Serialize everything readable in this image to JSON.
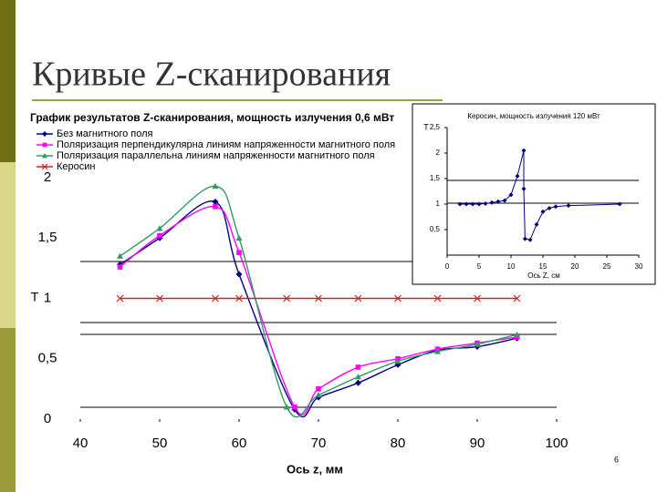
{
  "slide_title": "Кривые Z-сканирования",
  "page_number": "6",
  "chart_data": [
    {
      "type": "line",
      "title": "График результатов Z-сканирования, мощность излучения 0,6 мВт",
      "x_label": "Ось z, мм",
      "y_label": "T",
      "xlim": [
        40,
        100
      ],
      "xticks": [
        40,
        50,
        60,
        70,
        80,
        90,
        100
      ],
      "ylim": [
        0,
        2
      ],
      "yticks": [
        0,
        {
          "value": 0.5,
          "label": "0,5"
        },
        1,
        {
          "value": 1.5,
          "label": "1,5"
        },
        2
      ],
      "legend": "top-left",
      "series": [
        {
          "name": "Без магнитного поля",
          "color": "#000080",
          "marker": "diamond",
          "x": [
            45,
            50,
            57,
            60,
            67,
            70,
            75,
            80,
            85,
            90,
            95
          ],
          "values": [
            1.28,
            1.5,
            1.8,
            1.2,
            0.08,
            0.18,
            0.3,
            0.45,
            0.57,
            0.6,
            0.67
          ]
        },
        {
          "name": "Поляризация перпендикулярна линиям напряженности магнитного поля",
          "color": "#ff00ff",
          "marker": "square",
          "x": [
            45,
            50,
            57,
            60,
            67,
            70,
            75,
            80,
            85,
            90,
            95
          ],
          "values": [
            1.26,
            1.52,
            1.76,
            1.38,
            0.1,
            0.25,
            0.43,
            0.5,
            0.58,
            0.63,
            0.68
          ]
        },
        {
          "name": "Поляризация параллельна линиям напряженности магнитного поля",
          "color": "#339966",
          "marker": "triangle",
          "x": [
            45,
            50,
            57,
            60,
            66,
            70,
            75,
            80,
            85,
            90,
            95
          ],
          "values": [
            1.35,
            1.58,
            1.93,
            1.5,
            0.1,
            0.2,
            0.35,
            0.48,
            0.56,
            0.62,
            0.7
          ]
        },
        {
          "name": "Керосин",
          "color": "#cc2222",
          "marker": "x",
          "x": [
            45,
            50,
            57,
            60,
            66,
            70,
            75,
            80,
            85,
            90,
            95
          ],
          "values": [
            1,
            1,
            1,
            1,
            1,
            1,
            1,
            1,
            1,
            1,
            1
          ]
        }
      ]
    },
    {
      "type": "line",
      "title": "Керосин, мощность излучения 120 мВт",
      "x_label": "Ось Z, см",
      "y_label": "T",
      "xlim": [
        0,
        30
      ],
      "xticks": [
        0,
        5,
        10,
        15,
        20,
        25,
        30
      ],
      "ylim": [
        0,
        2.5
      ],
      "yticks": [
        {
          "value": 0.5,
          "label": "0,5"
        },
        1,
        {
          "value": 1.5,
          "label": "1,5"
        },
        2,
        {
          "value": 2.5,
          "label": "2,5"
        }
      ],
      "series": [
        {
          "color": "#000080",
          "marker": "diamond",
          "x": [
            2,
            3,
            4,
            5,
            6,
            7,
            8,
            9,
            10,
            11,
            12,
            12,
            12.2,
            13,
            14,
            15,
            16,
            17,
            19,
            27
          ],
          "values": [
            1,
            1,
            1,
            1,
            1.01,
            1.03,
            1.05,
            1.07,
            1.18,
            1.55,
            2.05,
            1.3,
            0.32,
            0.3,
            0.6,
            0.85,
            0.92,
            0.95,
            0.97,
            1
          ]
        }
      ]
    }
  ]
}
